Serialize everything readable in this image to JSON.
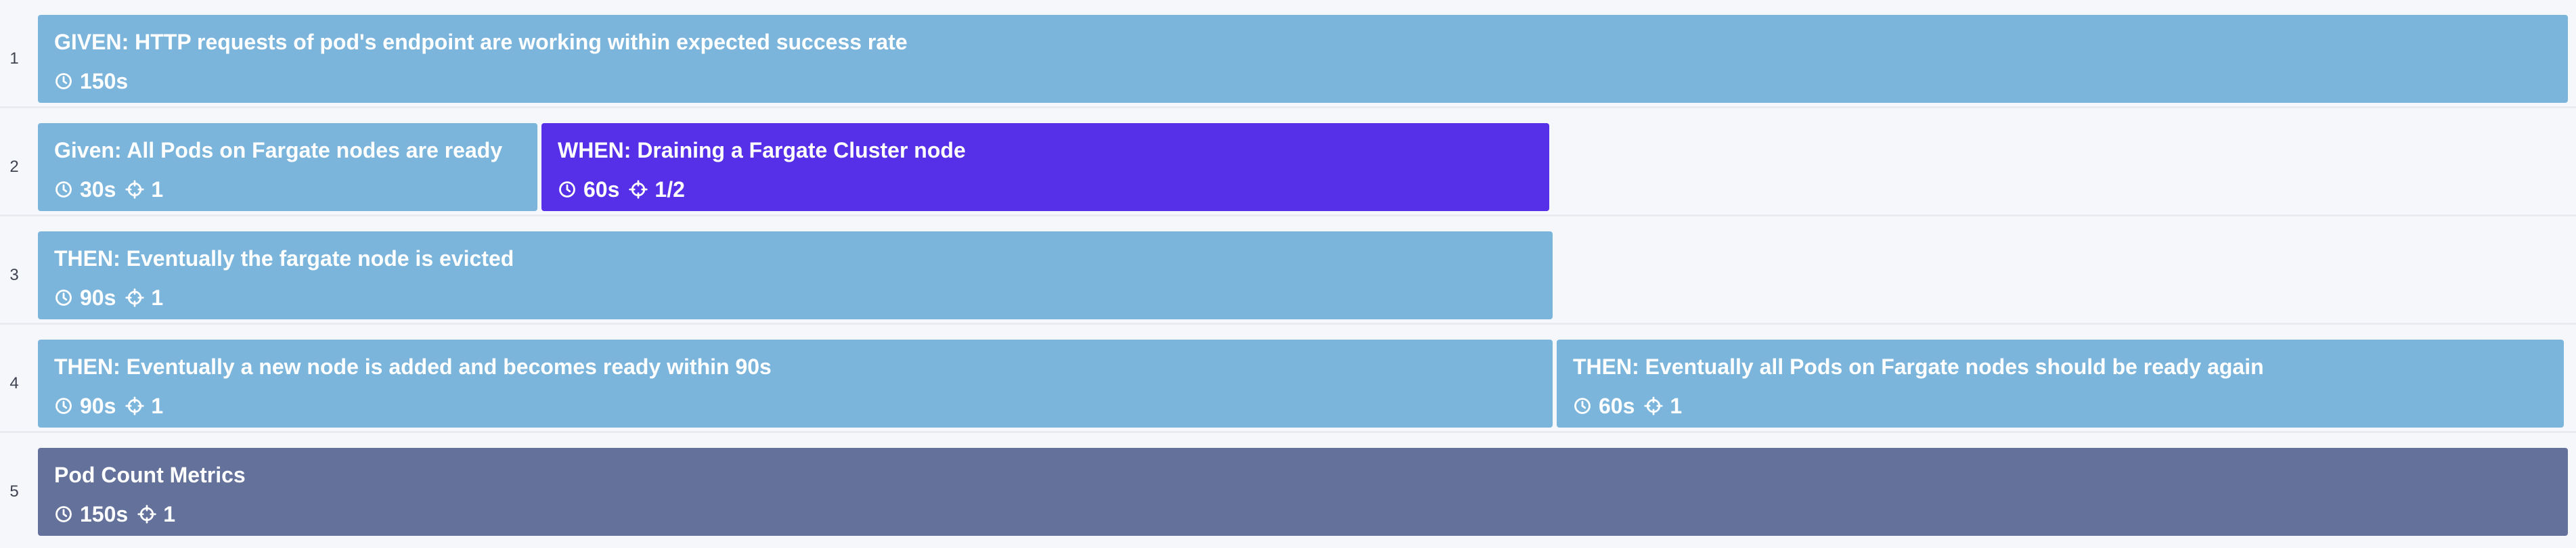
{
  "lanes": [
    {
      "number": "1",
      "steps": [
        {
          "title": "GIVEN: HTTP requests of pod's endpoint are working within expected success rate",
          "duration": "150s",
          "target": "",
          "color": "#7bb5dc"
        }
      ]
    },
    {
      "number": "2",
      "steps": [
        {
          "title": "Given: All Pods on Fargate nodes are ready",
          "duration": "30s",
          "target": "1",
          "color": "#7bb5dc"
        },
        {
          "title": "WHEN: Draining a Fargate Cluster node",
          "duration": "60s",
          "target": "1/2",
          "color": "#5630e8"
        }
      ]
    },
    {
      "number": "3",
      "steps": [
        {
          "title": "THEN: Eventually the fargate node is evicted",
          "duration": "90s",
          "target": "1",
          "color": "#7bb5dc"
        }
      ]
    },
    {
      "number": "4",
      "steps": [
        {
          "title": "THEN: Eventually a new node is added and becomes ready within 90s",
          "duration": "90s",
          "target": "1",
          "color": "#7bb5dc"
        },
        {
          "title": "THEN: Eventually all Pods on Fargate nodes should be ready again",
          "duration": "60s",
          "target": "1",
          "color": "#7bb5dc"
        }
      ]
    },
    {
      "number": "5",
      "steps": [
        {
          "title": "Pod Count Metrics",
          "duration": "150s",
          "target": "1",
          "color": "#64729b"
        }
      ]
    }
  ],
  "icons": {
    "duration": "clock-icon",
    "target": "target-icon"
  }
}
